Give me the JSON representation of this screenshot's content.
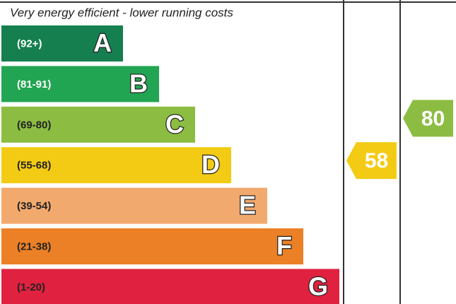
{
  "chart_data": {
    "type": "epc",
    "title": "Very energy efficient - lower running costs",
    "bands": [
      {
        "range": "(92+)",
        "letter": "A",
        "color": "#157f4f",
        "text_color": "#ffffff"
      },
      {
        "range": "(81-91)",
        "letter": "B",
        "color": "#22a552",
        "text_color": "#ffffff"
      },
      {
        "range": "(69-80)",
        "letter": "C",
        "color": "#8cbd42",
        "text_color": "#222222"
      },
      {
        "range": "(55-68)",
        "letter": "D",
        "color": "#f4cb14",
        "text_color": "#222222"
      },
      {
        "range": "(39-54)",
        "letter": "E",
        "color": "#f2a96e",
        "text_color": "#222222"
      },
      {
        "range": "(21-38)",
        "letter": "F",
        "color": "#ec8026",
        "text_color": "#222222"
      },
      {
        "range": "(1-20)",
        "letter": "G",
        "color": "#e0213f",
        "text_color": "#222222"
      }
    ],
    "ratings": [
      {
        "value": 58,
        "color": "#f4cb14"
      },
      {
        "value": 80,
        "color": "#8cbd42"
      }
    ]
  }
}
